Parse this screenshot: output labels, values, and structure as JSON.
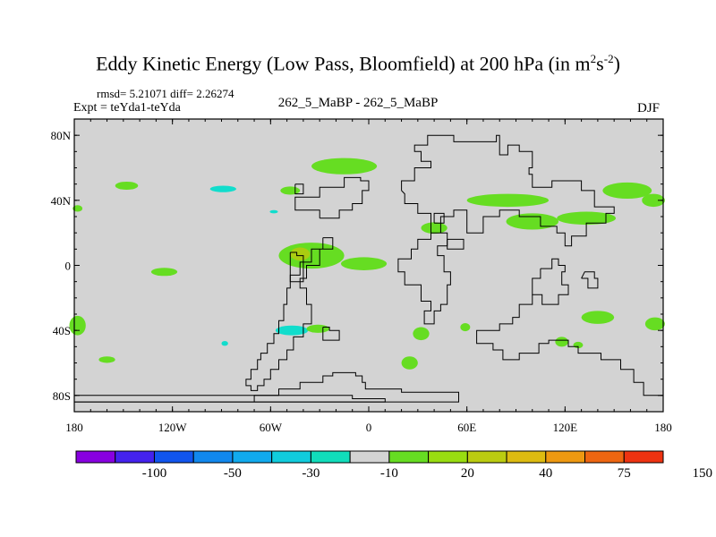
{
  "title": {
    "main": "Eddy Kinetic Energy (Low Pass, Bloomfield) at 200 hPa (in m",
    "sup1": "2",
    "mid": "s",
    "sup2": "-2",
    "end": ")"
  },
  "stats": "rmsd= 5.21071 diff= 2.26274",
  "experiment": "Expt = teYda1-teYda",
  "comparison": "262_5_MaBP - 262_5_MaBP",
  "season": "DJF",
  "colors": {
    "ocean_land": "#d3d3d3",
    "green": "#66dd22",
    "yellowgreen": "#aacc11",
    "cyan": "#11ddcc",
    "coastline": "#000000"
  },
  "chart_data": {
    "type": "map",
    "projection": "cylindrical-equidistant",
    "lon_range": [
      -180,
      180
    ],
    "lat_range": [
      -90,
      90
    ],
    "lon_ticks": [
      {
        "value": -180,
        "label": "180"
      },
      {
        "value": -120,
        "label": "120W"
      },
      {
        "value": -60,
        "label": "60W"
      },
      {
        "value": 0,
        "label": "0"
      },
      {
        "value": 60,
        "label": "60E"
      },
      {
        "value": 120,
        "label": "120E"
      },
      {
        "value": 180,
        "label": "180"
      }
    ],
    "lat_ticks": [
      {
        "value": 80,
        "label": "80N"
      },
      {
        "value": 40,
        "label": "40N"
      },
      {
        "value": 0,
        "label": "0"
      },
      {
        "value": -40,
        "label": "40S"
      },
      {
        "value": -80,
        "label": "80S"
      }
    ],
    "patches": [
      {
        "lon": -15,
        "lat": 61,
        "rlon": 20,
        "rlat": 5,
        "level": 20
      },
      {
        "lon": -148,
        "lat": 49,
        "rlon": 7,
        "rlat": 2.5,
        "level": 20
      },
      {
        "lon": -89,
        "lat": 47,
        "rlon": 8,
        "rlat": 2,
        "level": -10
      },
      {
        "lon": -48,
        "lat": 46,
        "rlon": 6,
        "rlat": 2.5,
        "level": 20
      },
      {
        "lon": -58,
        "lat": 33,
        "rlon": 2.5,
        "rlat": 1,
        "level": -10
      },
      {
        "lon": -178,
        "lat": 35,
        "rlon": 3,
        "rlat": 2,
        "level": 20
      },
      {
        "lon": -35,
        "lat": 6,
        "rlon": 20,
        "rlat": 8,
        "level": 20
      },
      {
        "lon": -42,
        "lat": 7,
        "rlon": 6,
        "rlat": 4,
        "level": 30
      },
      {
        "lon": -3,
        "lat": 1,
        "rlon": 14,
        "rlat": 4,
        "level": 20
      },
      {
        "lon": -125,
        "lat": -4,
        "rlon": 8,
        "rlat": 2.5,
        "level": 20
      },
      {
        "lon": 40,
        "lat": 23,
        "rlon": 8,
        "rlat": 3.5,
        "level": 20
      },
      {
        "lon": 85,
        "lat": 40,
        "rlon": 25,
        "rlat": 4,
        "level": 20
      },
      {
        "lon": 100,
        "lat": 27,
        "rlon": 16,
        "rlat": 5,
        "level": 20
      },
      {
        "lon": 133,
        "lat": 29,
        "rlon": 18,
        "rlat": 4,
        "level": 20
      },
      {
        "lon": 158,
        "lat": 46,
        "rlon": 15,
        "rlat": 5,
        "level": 20
      },
      {
        "lon": 174,
        "lat": 40,
        "rlon": 7,
        "rlat": 4,
        "level": 20
      },
      {
        "lon": -178,
        "lat": -37,
        "rlon": 5,
        "rlat": 6,
        "level": 20
      },
      {
        "lon": -160,
        "lat": -58,
        "rlon": 5,
        "rlat": 2,
        "level": 20
      },
      {
        "lon": -88,
        "lat": -48,
        "rlon": 2,
        "rlat": 1.5,
        "level": -10
      },
      {
        "lon": -47,
        "lat": -40,
        "rlon": 10,
        "rlat": 3,
        "level": -10
      },
      {
        "lon": -31,
        "lat": -39,
        "rlon": 7,
        "rlat": 2.5,
        "level": 20
      },
      {
        "lon": 32,
        "lat": -42,
        "rlon": 5,
        "rlat": 4,
        "level": 20
      },
      {
        "lon": 25,
        "lat": -60,
        "rlon": 5,
        "rlat": 4,
        "level": 20
      },
      {
        "lon": 59,
        "lat": -38,
        "rlon": 3,
        "rlat": 2.5,
        "level": 20
      },
      {
        "lon": 118,
        "lat": -47,
        "rlon": 4,
        "rlat": 3,
        "level": 20
      },
      {
        "lon": 128,
        "lat": -49,
        "rlon": 3,
        "rlat": 2,
        "level": 20
      },
      {
        "lon": 140,
        "lat": -32,
        "rlon": 10,
        "rlat": 4,
        "level": 20
      },
      {
        "lon": 175,
        "lat": -36,
        "rlon": 6,
        "rlat": 4,
        "level": 20
      }
    ],
    "coastlines": [
      [
        [
          -180,
          -84
        ],
        [
          -70,
          -84
        ],
        [
          -70,
          -80
        ],
        [
          -55,
          -80
        ],
        [
          -55,
          -76
        ],
        [
          -42,
          -76
        ],
        [
          -42,
          -72
        ],
        [
          -28,
          -72
        ],
        [
          -28,
          -68
        ],
        [
          -22,
          -68
        ],
        [
          -22,
          -66
        ],
        [
          -8,
          -66
        ],
        [
          -8,
          -68
        ],
        [
          -4,
          -68
        ],
        [
          -4,
          -72
        ],
        [
          -2,
          -72
        ],
        [
          -2,
          -76
        ],
        [
          20,
          -76
        ],
        [
          20,
          -78
        ],
        [
          55,
          -78
        ],
        [
          55,
          -84
        ],
        [
          -180,
          -84
        ]
      ],
      [
        [
          -180,
          -80
        ],
        [
          -10,
          -80
        ],
        [
          -10,
          -82
        ],
        [
          10,
          -82
        ],
        [
          10,
          -84
        ],
        [
          -180,
          -84
        ]
      ],
      [
        [
          -28,
          17
        ],
        [
          -28,
          10
        ],
        [
          -35,
          10
        ],
        [
          -35,
          2
        ],
        [
          -42,
          2
        ],
        [
          -42,
          -6
        ],
        [
          -48,
          -6
        ],
        [
          -48,
          -14
        ],
        [
          -50,
          -14
        ],
        [
          -50,
          -24
        ],
        [
          -52,
          -24
        ],
        [
          -52,
          -34
        ],
        [
          -55,
          -34
        ],
        [
          -55,
          -42
        ],
        [
          -58,
          -42
        ],
        [
          -58,
          -48
        ],
        [
          -62,
          -48
        ],
        [
          -62,
          -54
        ],
        [
          -66,
          -54
        ],
        [
          -66,
          -58
        ],
        [
          -68,
          -58
        ],
        [
          -68,
          -64
        ],
        [
          -72,
          -64
        ],
        [
          -72,
          -70
        ],
        [
          -75,
          -70
        ],
        [
          -75,
          -74
        ],
        [
          -72,
          -74
        ],
        [
          -72,
          -77
        ],
        [
          -68,
          -77
        ],
        [
          -68,
          -74
        ],
        [
          -64,
          -74
        ],
        [
          -64,
          -70
        ],
        [
          -60,
          -70
        ],
        [
          -60,
          -64
        ],
        [
          -55,
          -64
        ],
        [
          -55,
          -58
        ],
        [
          -50,
          -58
        ],
        [
          -50,
          -52
        ],
        [
          -46,
          -52
        ],
        [
          -46,
          -44
        ],
        [
          -40,
          -44
        ],
        [
          -40,
          -36
        ],
        [
          -35,
          -36
        ],
        [
          -35,
          -24
        ],
        [
          -38,
          -24
        ],
        [
          -38,
          -14
        ],
        [
          -42,
          -14
        ],
        [
          -42,
          -8
        ],
        [
          -38,
          -8
        ],
        [
          -38,
          0
        ],
        [
          -30,
          0
        ],
        [
          -30,
          10
        ],
        [
          -22,
          10
        ],
        [
          -22,
          17
        ],
        [
          -28,
          17
        ]
      ],
      [
        [
          -48,
          8
        ],
        [
          -48,
          -10
        ],
        [
          -40,
          -10
        ],
        [
          -40,
          6
        ],
        [
          -44,
          6
        ],
        [
          -44,
          8
        ],
        [
          -48,
          8
        ]
      ],
      [
        [
          -28,
          -38
        ],
        [
          -28,
          -46
        ],
        [
          -18,
          -46
        ],
        [
          -18,
          -40
        ],
        [
          -24,
          -40
        ],
        [
          -24,
          -38
        ],
        [
          -28,
          -38
        ]
      ],
      [
        [
          -30,
          29
        ],
        [
          -30,
          34
        ],
        [
          -45,
          34
        ],
        [
          -45,
          42
        ],
        [
          -30,
          42
        ],
        [
          -30,
          48
        ],
        [
          -15,
          48
        ],
        [
          -15,
          54
        ],
        [
          -5,
          54
        ],
        [
          -5,
          52
        ],
        [
          0,
          52
        ],
        [
          0,
          46
        ],
        [
          -4,
          46
        ],
        [
          -4,
          38
        ],
        [
          -10,
          38
        ],
        [
          -10,
          34
        ],
        [
          -18,
          34
        ],
        [
          -18,
          29
        ],
        [
          -30,
          29
        ]
      ],
      [
        [
          -45,
          50
        ],
        [
          -45,
          44
        ],
        [
          -40,
          44
        ],
        [
          -40,
          50
        ],
        [
          -45,
          50
        ]
      ],
      [
        [
          20,
          46
        ],
        [
          20,
          52
        ],
        [
          28,
          52
        ],
        [
          28,
          60
        ],
        [
          38,
          60
        ],
        [
          38,
          64
        ],
        [
          32,
          64
        ],
        [
          32,
          70
        ],
        [
          28,
          70
        ],
        [
          28,
          74
        ],
        [
          36,
          74
        ],
        [
          36,
          80
        ],
        [
          52,
          80
        ],
        [
          52,
          76
        ],
        [
          78,
          76
        ],
        [
          78,
          80
        ],
        [
          80,
          80
        ],
        [
          80,
          68
        ],
        [
          85,
          68
        ],
        [
          85,
          74
        ],
        [
          92,
          74
        ],
        [
          92,
          70
        ],
        [
          100,
          70
        ],
        [
          100,
          60
        ],
        [
          98,
          60
        ],
        [
          98,
          56
        ],
        [
          100,
          56
        ],
        [
          100,
          48
        ],
        [
          112,
          48
        ],
        [
          112,
          52
        ],
        [
          130,
          52
        ],
        [
          130,
          46
        ],
        [
          138,
          46
        ],
        [
          138,
          36
        ],
        [
          150,
          36
        ],
        [
          150,
          32
        ],
        [
          145,
          32
        ],
        [
          145,
          26
        ],
        [
          133,
          26
        ],
        [
          133,
          18
        ],
        [
          124,
          18
        ],
        [
          124,
          12
        ],
        [
          120,
          12
        ],
        [
          120,
          20
        ],
        [
          115,
          20
        ],
        [
          115,
          24
        ],
        [
          105,
          24
        ],
        [
          105,
          30
        ],
        [
          92,
          30
        ],
        [
          92,
          34
        ],
        [
          80,
          34
        ],
        [
          80,
          30
        ],
        [
          70,
          30
        ],
        [
          70,
          20
        ],
        [
          60,
          20
        ],
        [
          60,
          34
        ],
        [
          52,
          34
        ],
        [
          52,
          30
        ],
        [
          44,
          30
        ],
        [
          44,
          20
        ],
        [
          38,
          20
        ],
        [
          38,
          16
        ],
        [
          30,
          16
        ],
        [
          30,
          10
        ],
        [
          26,
          10
        ],
        [
          26,
          4
        ],
        [
          18,
          4
        ],
        [
          18,
          -4
        ],
        [
          22,
          -4
        ],
        [
          22,
          -12
        ],
        [
          32,
          -12
        ],
        [
          32,
          -22
        ],
        [
          38,
          -22
        ],
        [
          38,
          -28
        ],
        [
          34,
          -28
        ],
        [
          34,
          -36
        ],
        [
          40,
          -36
        ],
        [
          40,
          -28
        ],
        [
          44,
          -28
        ],
        [
          44,
          -24
        ],
        [
          48,
          -24
        ],
        [
          48,
          -12
        ],
        [
          50,
          -12
        ],
        [
          50,
          -4
        ],
        [
          46,
          -4
        ],
        [
          46,
          6
        ],
        [
          42,
          6
        ],
        [
          42,
          12
        ],
        [
          48,
          12
        ],
        [
          48,
          20
        ],
        [
          38,
          20
        ],
        [
          38,
          32
        ],
        [
          30,
          32
        ],
        [
          30,
          38
        ],
        [
          22,
          38
        ],
        [
          22,
          44
        ],
        [
          20,
          46
        ]
      ],
      [
        [
          40,
          26
        ],
        [
          40,
          32
        ],
        [
          46,
          32
        ],
        [
          46,
          26
        ],
        [
          40,
          26
        ]
      ],
      [
        [
          48,
          16
        ],
        [
          48,
          10
        ],
        [
          58,
          10
        ],
        [
          58,
          16
        ],
        [
          48,
          16
        ]
      ],
      [
        [
          100,
          -18
        ],
        [
          100,
          -24
        ],
        [
          92,
          -24
        ],
        [
          92,
          -32
        ],
        [
          88,
          -32
        ],
        [
          88,
          -36
        ],
        [
          80,
          -36
        ],
        [
          80,
          -40
        ],
        [
          66,
          -40
        ],
        [
          66,
          -48
        ],
        [
          76,
          -48
        ],
        [
          76,
          -52
        ],
        [
          82,
          -52
        ],
        [
          82,
          -58
        ],
        [
          92,
          -58
        ],
        [
          92,
          -54
        ],
        [
          104,
          -54
        ],
        [
          104,
          -48
        ],
        [
          110,
          -48
        ],
        [
          110,
          -46
        ],
        [
          122,
          -46
        ],
        [
          122,
          -50
        ],
        [
          128,
          -50
        ],
        [
          128,
          -54
        ],
        [
          142,
          -54
        ],
        [
          142,
          -58
        ],
        [
          154,
          -58
        ],
        [
          154,
          -64
        ],
        [
          162,
          -64
        ],
        [
          162,
          -72
        ],
        [
          168,
          -72
        ],
        [
          168,
          -80
        ],
        [
          180,
          -80
        ]
      ],
      [
        [
          105,
          -2
        ],
        [
          112,
          -2
        ],
        [
          112,
          4
        ],
        [
          116,
          4
        ],
        [
          116,
          0
        ],
        [
          120,
          0
        ],
        [
          120,
          -4
        ],
        [
          118,
          -4
        ],
        [
          118,
          -12
        ],
        [
          122,
          -12
        ],
        [
          122,
          -18
        ],
        [
          116,
          -18
        ],
        [
          116,
          -24
        ],
        [
          106,
          -24
        ],
        [
          106,
          -18
        ],
        [
          100,
          -18
        ],
        [
          100,
          -8
        ],
        [
          105,
          -8
        ],
        [
          105,
          -2
        ]
      ],
      [
        [
          130,
          -8
        ],
        [
          134,
          -8
        ],
        [
          134,
          -14
        ],
        [
          140,
          -14
        ],
        [
          140,
          -8
        ],
        [
          138,
          -8
        ],
        [
          138,
          -4
        ],
        [
          132,
          -4
        ],
        [
          130,
          -8
        ]
      ]
    ]
  },
  "colorbar": {
    "colors": [
      "#8800e0",
      "#4422ee",
      "#1155ee",
      "#1188ee",
      "#11aaee",
      "#11ccdd",
      "#11ddbb",
      "#d3d3d3",
      "#66dd22",
      "#99dd11",
      "#bbcc11",
      "#ddbb11",
      "#ee9911",
      "#ee6611",
      "#ee3311"
    ],
    "labels": [
      "-100",
      "-50",
      "-30",
      "-10",
      "20",
      "40",
      "75",
      "150"
    ]
  }
}
